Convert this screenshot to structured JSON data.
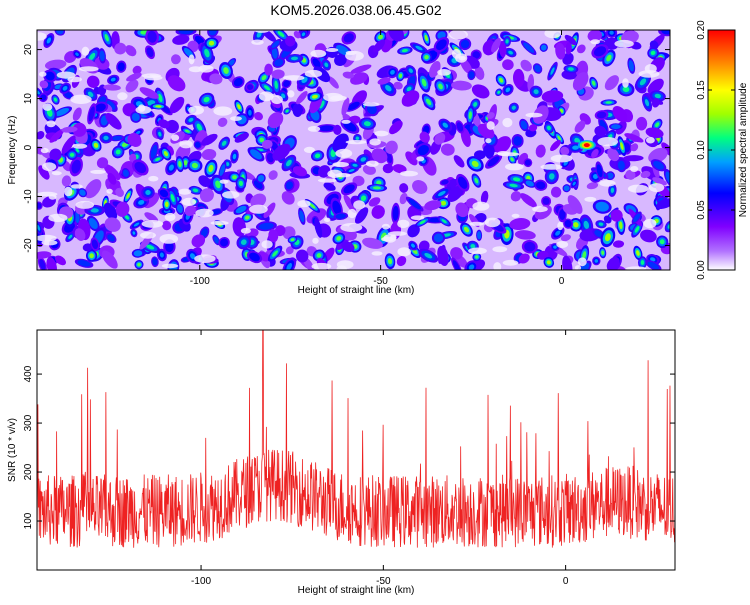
{
  "chart_data": [
    {
      "type": "heatmap",
      "title": "KOM5.2026.038.06.45.G02",
      "xlabel": "Height of straight line (km)",
      "ylabel": "Frequency (Hz)",
      "xlim": [
        -145,
        30
      ],
      "ylim": [
        -25,
        24
      ],
      "x_ticks": [
        -100,
        -50,
        0
      ],
      "y_ticks": [
        -20,
        -10,
        0,
        10,
        20
      ],
      "x_tick_labels": [
        "-100",
        "-50",
        "0"
      ],
      "y_tick_labels": [
        "-20",
        "-10",
        "0",
        "10",
        "20"
      ],
      "colorbar": {
        "label": "Normalized spectral amplitude",
        "range": [
          0.0,
          0.2
        ],
        "ticks": [
          0.0,
          0.05,
          0.1,
          0.15,
          0.2
        ],
        "tick_labels": [
          "0.00",
          "0.05",
          "0.10",
          "0.15",
          "0.20"
        ],
        "colors": [
          "#ffffff",
          "#b070ff",
          "#8000ff",
          "#0000ff",
          "#00a0ff",
          "#00ff80",
          "#a0ff00",
          "#ffff00",
          "#ff8000",
          "#ff0000"
        ]
      },
      "peak": {
        "x": 7,
        "y": 0.5,
        "value": 0.19
      }
    },
    {
      "type": "line",
      "xlabel": "Height of straight line (km)",
      "ylabel": "SNR (10 * v/v)",
      "xlim": [
        -145,
        30
      ],
      "ylim": [
        0,
        490
      ],
      "x_ticks": [
        -100,
        -50,
        0
      ],
      "y_ticks": [
        100,
        200,
        300,
        400
      ],
      "x_tick_labels": [
        "-100",
        "-50",
        "0"
      ],
      "y_tick_labels": [
        "100",
        "200",
        "300",
        "400"
      ],
      "series": [
        {
          "name": "SNR",
          "color": "#ee2222",
          "baseline": 120,
          "peak_x": -83,
          "peak_value": 480
        }
      ]
    }
  ]
}
